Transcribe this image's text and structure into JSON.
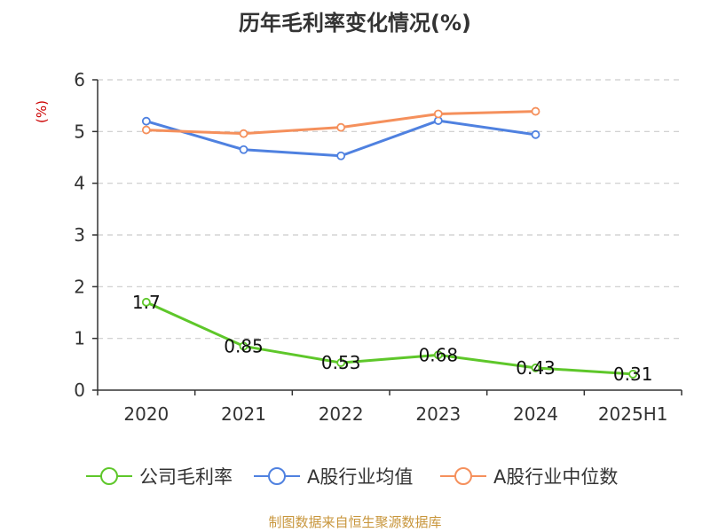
{
  "colors": {
    "company": "#5ec72a",
    "industry_avg": "#4f81e0",
    "industry_median": "#f5905c",
    "grid": "#cccccc",
    "axis": "#333333",
    "unit": "#cc0000",
    "source": "#c8963c"
  },
  "footer": {
    "source": "制图数据来自恒生聚源数据库"
  },
  "chart_data": {
    "type": "line",
    "title": "历年毛利率变化情况(%)",
    "ylabel": "(%)",
    "xlabel": "",
    "categories": [
      "2020",
      "2021",
      "2022",
      "2023",
      "2024",
      "2025H1"
    ],
    "ylim": [
      0,
      6
    ],
    "yticks": [
      0,
      1,
      2,
      3,
      4,
      5,
      6
    ],
    "grid": true,
    "legend_position": "bottom",
    "series": [
      {
        "name": "公司毛利率",
        "color_key": "company",
        "values": [
          1.7,
          0.85,
          0.53,
          0.68,
          0.43,
          0.31
        ],
        "data_labels": [
          "1.7",
          "0.85",
          "0.53",
          "0.68",
          "0.43",
          "0.31"
        ]
      },
      {
        "name": "A股行业均值",
        "color_key": "industry_avg",
        "values": [
          5.2,
          4.65,
          4.53,
          5.21,
          4.94,
          null
        ]
      },
      {
        "name": "A股行业中位数",
        "color_key": "industry_median",
        "values": [
          5.03,
          4.96,
          5.08,
          5.34,
          5.39,
          null
        ]
      }
    ]
  }
}
